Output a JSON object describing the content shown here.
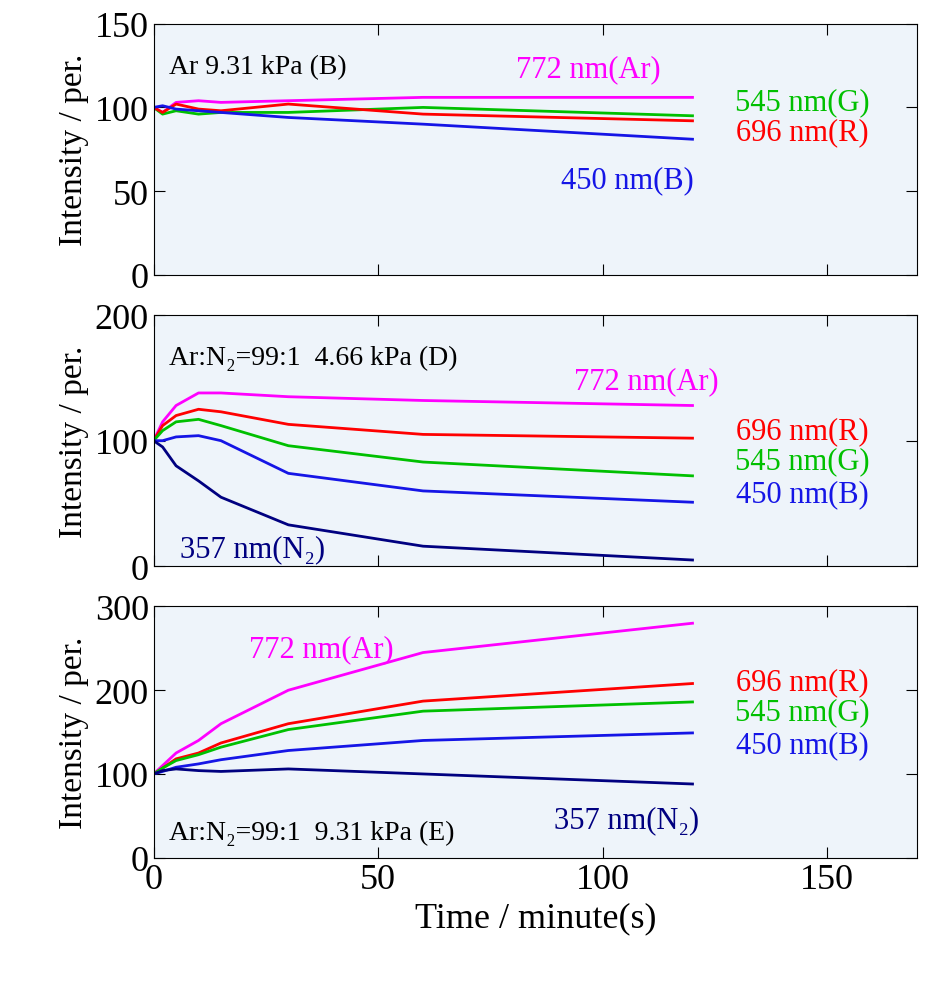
{
  "chart_data": [
    {
      "type": "line",
      "title": "Ar 9.31 kPa (B)",
      "y_label": "Intensity / per.",
      "x": [
        0,
        2,
        5,
        10,
        15,
        30,
        60,
        120
      ],
      "xlim": [
        0,
        170
      ],
      "xticks": [
        0,
        50,
        100,
        150
      ],
      "ylim": [
        0,
        150
      ],
      "yticks": [
        0,
        50,
        100,
        150
      ],
      "tick_labels": "y",
      "series": [
        {
          "name": "772 nm(Ar)",
          "color": "#ff00ff",
          "values": [
            100,
            97,
            103,
            104,
            103,
            104,
            106,
            106
          ]
        },
        {
          "name": "545 nm(G)",
          "color": "#00c000",
          "values": [
            100,
            96,
            98,
            96,
            97,
            97,
            100,
            95
          ]
        },
        {
          "name": "696 nm(R)",
          "color": "#ff0000",
          "values": [
            100,
            97,
            102,
            99,
            98,
            102,
            96,
            92
          ]
        },
        {
          "name": "450 nm(B)",
          "color": "#1515e6",
          "values": [
            100,
            101,
            99,
            98,
            97,
            94,
            90,
            81
          ]
        }
      ]
    },
    {
      "type": "line",
      "title": "Ar:N₂=99:1  4.66 kPa (D)",
      "y_label": "Intensity / per.",
      "x": [
        0,
        2,
        5,
        10,
        15,
        30,
        60,
        120
      ],
      "xlim": [
        0,
        170
      ],
      "xticks": [
        0,
        50,
        100,
        150
      ],
      "ylim": [
        0,
        200
      ],
      "yticks": [
        0,
        100,
        200
      ],
      "tick_labels": "y",
      "series": [
        {
          "name": "772 nm(Ar)",
          "color": "#ff00ff",
          "values": [
            100,
            115,
            128,
            138,
            138,
            135,
            132,
            128
          ]
        },
        {
          "name": "696 nm(R)",
          "color": "#ff0000",
          "values": [
            100,
            112,
            120,
            125,
            123,
            113,
            105,
            102
          ]
        },
        {
          "name": "545 nm(G)",
          "color": "#00c000",
          "values": [
            100,
            108,
            115,
            117,
            112,
            96,
            83,
            72
          ]
        },
        {
          "name": "450 nm(B)",
          "color": "#1515e6",
          "values": [
            100,
            100,
            103,
            104,
            100,
            74,
            60,
            51
          ]
        },
        {
          "name": "357 nm(N₂)",
          "color": "#000080",
          "values": [
            100,
            95,
            80,
            68,
            55,
            33,
            16,
            5
          ]
        }
      ]
    },
    {
      "type": "line",
      "title": "Ar:N₂=99:1  9.31 kPa (E)",
      "y_label": "Intensity / per.",
      "x_label": "Time / minute(s)",
      "x": [
        0,
        2,
        5,
        10,
        15,
        30,
        60,
        120
      ],
      "xlim": [
        0,
        170
      ],
      "xticks": [
        0,
        50,
        100,
        150
      ],
      "ylim": [
        0,
        300
      ],
      "yticks": [
        0,
        100,
        200,
        300
      ],
      "series": [
        {
          "name": "772 nm(Ar)",
          "color": "#ff00ff",
          "values": [
            100,
            110,
            125,
            140,
            160,
            200,
            245,
            280
          ]
        },
        {
          "name": "696 nm(R)",
          "color": "#ff0000",
          "values": [
            100,
            107,
            118,
            125,
            137,
            160,
            187,
            208
          ]
        },
        {
          "name": "545 nm(G)",
          "color": "#00c000",
          "values": [
            100,
            107,
            116,
            123,
            132,
            153,
            175,
            186
          ]
        },
        {
          "name": "450 nm(B)",
          "color": "#1515e6",
          "values": [
            100,
            103,
            108,
            112,
            117,
            128,
            140,
            149
          ]
        },
        {
          "name": "357 nm(N₂)",
          "color": "#000080",
          "values": [
            100,
            104,
            106,
            104,
            103,
            106,
            100,
            88
          ]
        }
      ]
    }
  ]
}
